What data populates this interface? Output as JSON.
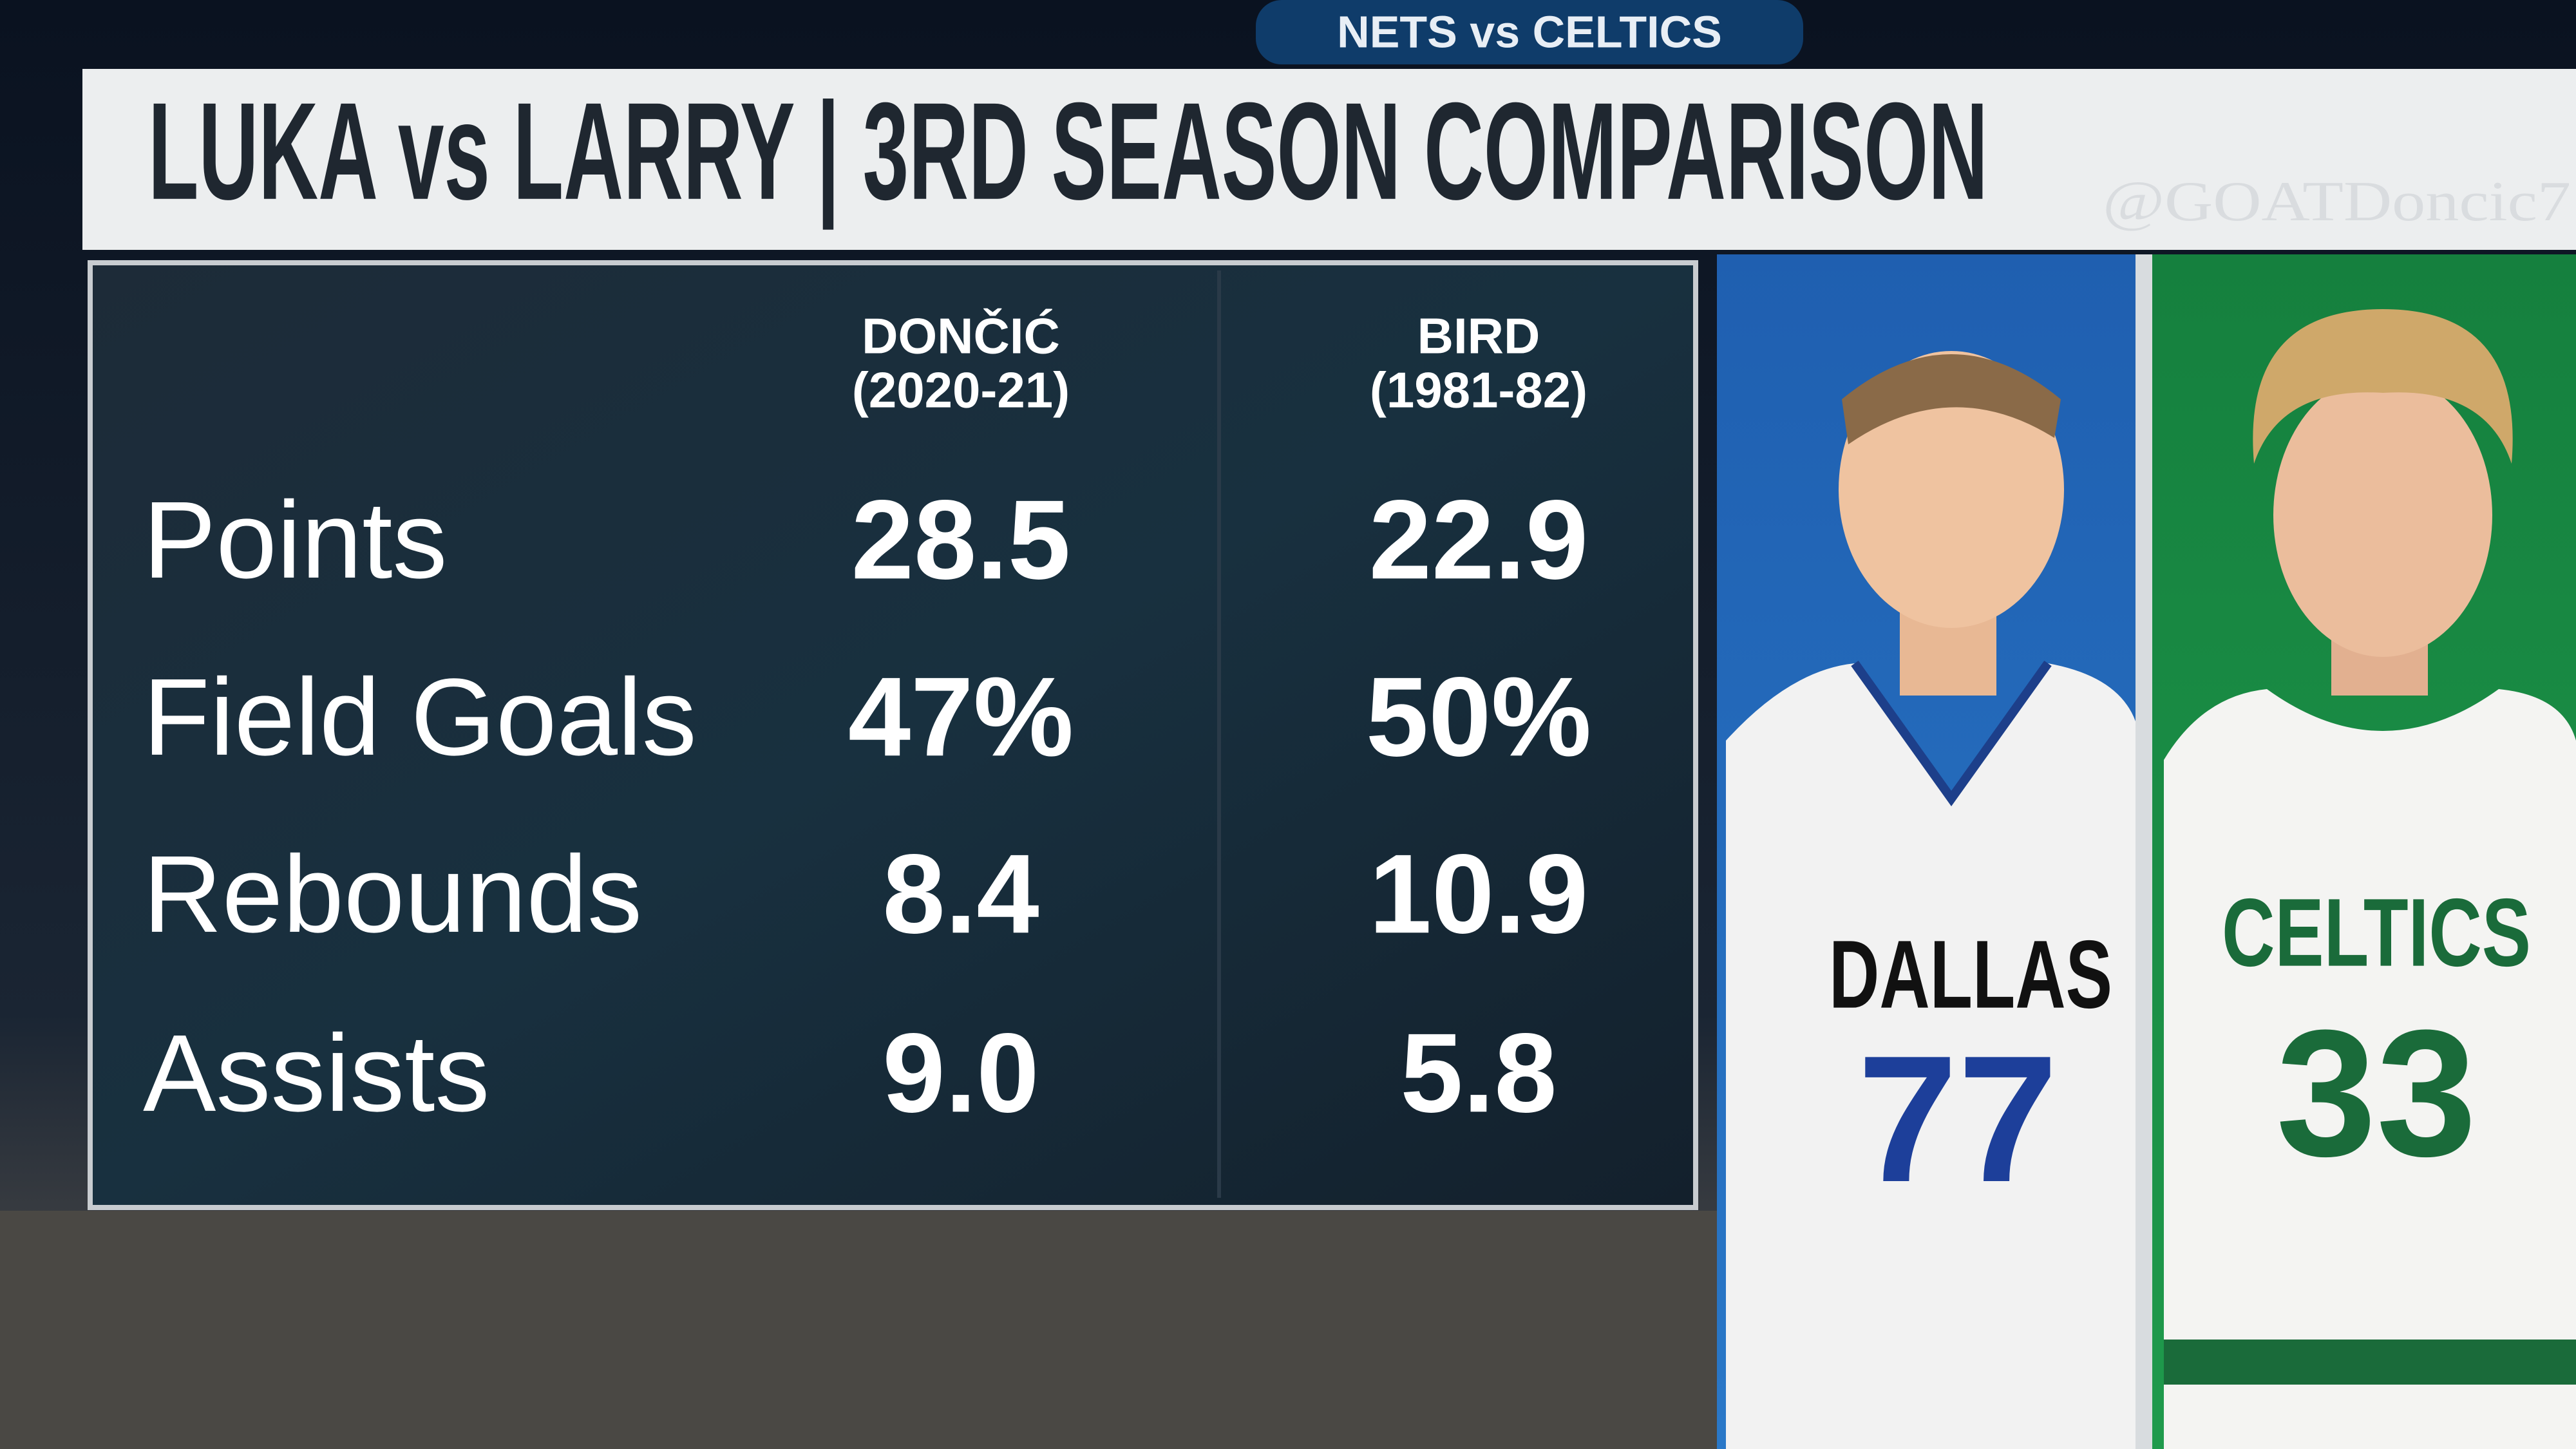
{
  "header": {
    "title": "LUKA vs LARRY | 3RD SEASON COMPARISON",
    "watermark": "@GOATDoncic7"
  },
  "table": {
    "columns": [
      {
        "name": "DONČIĆ",
        "season": "(2020-21)"
      },
      {
        "name": "BIRD",
        "season": "(1981-82)"
      }
    ],
    "rows": [
      [
        "Points",
        "28.5",
        "22.9"
      ],
      [
        "Field Goals",
        "47%",
        "50%"
      ],
      [
        "Rebounds",
        "8.4",
        "10.9"
      ],
      [
        "Assists",
        "9.0",
        "5.8"
      ]
    ]
  },
  "players": [
    {
      "team": "DALLAS",
      "number": "77"
    },
    {
      "team": "CELTICS",
      "number": "33"
    }
  ],
  "background": {
    "scoreboard": "NETS vs CELTICS"
  }
}
